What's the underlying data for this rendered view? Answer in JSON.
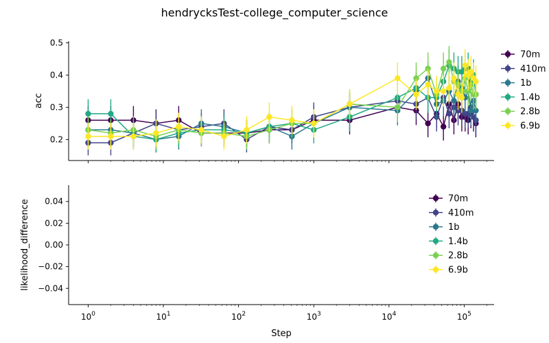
{
  "figure": {
    "title": "hendrycksTest-college_computer_science",
    "xlabel": "Step"
  },
  "colors": {
    "70m": "#440154",
    "410m": "#414487",
    "1b": "#2a788e",
    "1.4b": "#22a884",
    "2.8b": "#7ad151",
    "6.9b": "#fde725"
  },
  "chart_data": [
    {
      "type": "line",
      "xscale": "log",
      "ylabel": "acc",
      "xlim": [
        0.55,
        250000
      ],
      "ylim": [
        0.135,
        0.505
      ],
      "yticks": [
        0.2,
        0.3,
        0.4,
        0.5
      ],
      "ytick_labels": [
        "0.2",
        "0.3",
        "0.4",
        "0.5"
      ],
      "legend": "outside-right",
      "grid": false,
      "error_bars": true,
      "series": [
        {
          "name": "70m",
          "x": [
            1,
            2,
            4,
            8,
            16,
            32,
            64,
            128,
            256,
            512,
            1000,
            3000,
            13000,
            23000,
            33000,
            43000,
            53000,
            63000,
            73000,
            83000,
            93000,
            103000,
            113000,
            123000,
            133000,
            143000
          ],
          "y": [
            0.26,
            0.26,
            0.26,
            0.25,
            0.26,
            0.22,
            0.22,
            0.22,
            0.23,
            0.23,
            0.26,
            0.26,
            0.3,
            0.29,
            0.25,
            0.28,
            0.24,
            0.31,
            0.26,
            0.31,
            0.27,
            0.27,
            0.26,
            0.28,
            0.27,
            0.25
          ],
          "err": [
            0.044,
            0.044,
            0.044,
            0.043,
            0.044,
            0.041,
            0.041,
            0.041,
            0.042,
            0.042,
            0.044,
            0.044,
            0.046,
            0.045,
            0.043,
            0.045,
            0.043,
            0.046,
            0.044,
            0.046,
            0.045,
            0.045,
            0.044,
            0.045,
            0.045,
            0.043
          ]
        },
        {
          "name": "410m",
          "x": [
            1,
            2,
            4,
            8,
            16,
            32,
            64,
            128,
            256,
            512,
            1000,
            3000,
            13000,
            23000,
            33000,
            43000,
            53000,
            63000,
            73000,
            83000,
            93000,
            103000,
            113000,
            123000,
            133000,
            143000
          ],
          "y": [
            0.19,
            0.19,
            0.22,
            0.25,
            0.23,
            0.24,
            0.25,
            0.2,
            0.24,
            0.23,
            0.27,
            0.3,
            0.32,
            0.31,
            0.33,
            0.27,
            0.33,
            0.28,
            0.3,
            0.29,
            0.29,
            0.28,
            0.28,
            0.3,
            0.27,
            0.26
          ],
          "err": [
            0.039,
            0.039,
            0.042,
            0.044,
            0.042,
            0.043,
            0.044,
            0.04,
            0.043,
            0.042,
            0.045,
            0.046,
            0.047,
            0.046,
            0.047,
            0.045,
            0.047,
            0.045,
            0.046,
            0.046,
            0.046,
            0.045,
            0.045,
            0.046,
            0.045,
            0.044
          ]
        },
        {
          "name": "1b",
          "x": [
            1,
            2,
            4,
            8,
            16,
            32,
            64,
            128,
            256,
            512,
            1000,
            3000,
            13000,
            23000,
            33000,
            43000,
            53000,
            63000,
            73000,
            83000,
            93000,
            103000,
            113000,
            123000,
            133000,
            143000
          ],
          "y": [
            0.23,
            0.23,
            0.22,
            0.2,
            0.21,
            0.25,
            0.24,
            0.22,
            0.24,
            0.21,
            0.25,
            0.3,
            0.29,
            0.35,
            0.39,
            0.31,
            0.32,
            0.35,
            0.32,
            0.38,
            0.36,
            0.33,
            0.35,
            0.29,
            0.32,
            0.29
          ],
          "err": [
            0.042,
            0.042,
            0.042,
            0.04,
            0.041,
            0.044,
            0.043,
            0.042,
            0.043,
            0.041,
            0.044,
            0.046,
            0.046,
            0.048,
            0.049,
            0.046,
            0.047,
            0.048,
            0.047,
            0.049,
            0.048,
            0.047,
            0.048,
            0.046,
            0.047,
            0.046
          ]
        },
        {
          "name": "1.4b",
          "x": [
            1,
            2,
            4,
            8,
            16,
            32,
            64,
            128,
            256,
            512,
            1000,
            3000,
            13000,
            23000,
            33000,
            43000,
            53000,
            63000,
            73000,
            83000,
            93000,
            103000,
            113000,
            123000,
            133000,
            143000
          ],
          "y": [
            0.28,
            0.28,
            0.21,
            0.2,
            0.22,
            0.23,
            0.23,
            0.22,
            0.24,
            0.25,
            0.23,
            0.27,
            0.33,
            0.36,
            0.33,
            0.33,
            0.38,
            0.43,
            0.42,
            0.41,
            0.41,
            0.42,
            0.42,
            0.38,
            0.4,
            0.34
          ],
          "err": [
            0.045,
            0.045,
            0.041,
            0.04,
            0.042,
            0.042,
            0.042,
            0.042,
            0.043,
            0.044,
            0.042,
            0.045,
            0.047,
            0.048,
            0.047,
            0.047,
            0.049,
            0.05,
            0.05,
            0.049,
            0.049,
            0.05,
            0.05,
            0.049,
            0.049,
            0.047
          ]
        },
        {
          "name": "2.8b",
          "x": [
            1,
            2,
            4,
            8,
            16,
            32,
            64,
            128,
            256,
            512,
            1000,
            3000,
            13000,
            23000,
            33000,
            43000,
            53000,
            63000,
            73000,
            83000,
            93000,
            103000,
            113000,
            123000,
            133000,
            143000
          ],
          "y": [
            0.23,
            0.22,
            0.23,
            0.21,
            0.23,
            0.22,
            0.22,
            0.21,
            0.23,
            0.25,
            0.25,
            0.31,
            0.3,
            0.39,
            0.42,
            0.34,
            0.42,
            0.44,
            0.38,
            0.37,
            0.35,
            0.39,
            0.35,
            0.37,
            0.34,
            0.34
          ],
          "err": [
            0.042,
            0.042,
            0.042,
            0.041,
            0.042,
            0.042,
            0.042,
            0.041,
            0.042,
            0.044,
            0.044,
            0.046,
            0.046,
            0.049,
            0.05,
            0.047,
            0.05,
            0.05,
            0.049,
            0.049,
            0.048,
            0.049,
            0.048,
            0.049,
            0.047,
            0.047
          ]
        },
        {
          "name": "6.9b",
          "x": [
            1,
            2,
            4,
            8,
            16,
            32,
            64,
            128,
            256,
            512,
            1000,
            3000,
            13000,
            23000,
            33000,
            43000,
            53000,
            63000,
            73000,
            83000,
            93000,
            103000,
            113000,
            123000,
            133000,
            143000
          ],
          "y": [
            0.21,
            0.21,
            0.21,
            0.22,
            0.24,
            0.23,
            0.21,
            0.23,
            0.27,
            0.26,
            0.25,
            0.31,
            0.39,
            0.34,
            0.37,
            0.35,
            0.35,
            0.36,
            0.39,
            0.34,
            0.33,
            0.43,
            0.4,
            0.41,
            0.39,
            0.38
          ],
          "err": [
            0.041,
            0.041,
            0.041,
            0.042,
            0.043,
            0.042,
            0.041,
            0.042,
            0.045,
            0.044,
            0.044,
            0.046,
            0.049,
            0.048,
            0.049,
            0.048,
            0.048,
            0.048,
            0.049,
            0.048,
            0.047,
            0.05,
            0.049,
            0.049,
            0.049,
            0.049
          ]
        }
      ]
    },
    {
      "type": "line",
      "xscale": "log",
      "xlabel": "Step",
      "ylabel": "likelihood_difference",
      "xlim": [
        0.55,
        250000
      ],
      "ylim": [
        -0.055,
        0.055
      ],
      "yticks": [
        -0.04,
        -0.02,
        0.0,
        0.02,
        0.04
      ],
      "ytick_labels": [
        "−0.04",
        "−0.02",
        "0.00",
        "0.02",
        "0.04"
      ],
      "xticks": [
        1,
        10,
        100,
        1000,
        10000,
        100000
      ],
      "legend": "upper-right",
      "grid": false,
      "series": [
        {
          "name": "70m",
          "x": [],
          "y": []
        },
        {
          "name": "410m",
          "x": [],
          "y": []
        },
        {
          "name": "1b",
          "x": [],
          "y": []
        },
        {
          "name": "1.4b",
          "x": [],
          "y": []
        },
        {
          "name": "2.8b",
          "x": [],
          "y": []
        },
        {
          "name": "6.9b",
          "x": [],
          "y": []
        }
      ]
    }
  ]
}
